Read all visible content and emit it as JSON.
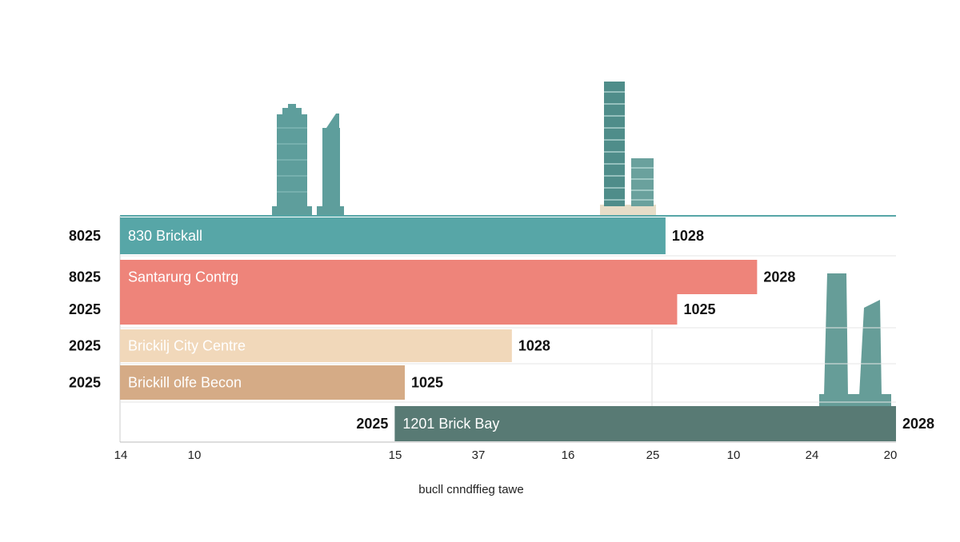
{
  "chart_data": {
    "type": "bar",
    "orientation": "horizontal",
    "title": "",
    "xlabel": "bucll cnndffieg tawe",
    "ylabel": "",
    "x_tick_labels": [
      "14",
      "10",
      "15",
      "37",
      "16",
      "25",
      "10",
      "24",
      "20"
    ],
    "bars": [
      {
        "name": "830 Brickall",
        "left_label": "8025",
        "end_label": "1028",
        "start": 0,
        "end": 0.703,
        "color": "#57a6a7",
        "label_color": "#ffffff",
        "end_label_color": "#111111"
      },
      {
        "name": "Santarurg Contrg",
        "left_label": "8025",
        "end_label": "2028",
        "start": 0,
        "end": 0.821,
        "color": "#ee847a",
        "label_color": "#ffffff",
        "end_label_color": "#111111"
      },
      {
        "name": "",
        "left_label": "2025",
        "end_label": "1025",
        "start": 0,
        "end": 0.718,
        "color": "#ee847a",
        "label_color": "#ffffff",
        "end_label_color": "#111111"
      },
      {
        "name": "Brickilj City Centre",
        "left_label": "2025",
        "end_label": "1028",
        "start": 0,
        "end": 0.505,
        "color": "#f1d8ba",
        "label_color": "#ffffff",
        "end_label_color": "#6b4a1e"
      },
      {
        "name": "Brickill olfe Becon",
        "left_label": "2025",
        "end_label": "1025",
        "start": 0,
        "end": 0.367,
        "color": "#d5ab86",
        "label_color": "#ffffff",
        "end_label_color": "#6b4a1e"
      },
      {
        "name": "1201 Brick Bay",
        "left_label": "2025",
        "end_label": "2028",
        "start": 0.354,
        "end": 1.0,
        "color": "#587a74",
        "label_color": "#ffffff",
        "end_label_color": "#111111"
      }
    ],
    "grid": true,
    "legend": "none"
  },
  "colors": {
    "teal": "#57a6a7",
    "coral": "#ee847a",
    "sand": "#f1d8ba",
    "tan": "#d5ab86",
    "slate": "#587a74",
    "building": "#5e9e9c"
  },
  "decorations": [
    "building-skyline-icon-left",
    "building-skyline-icon-center",
    "building-skyline-icon-right"
  ]
}
